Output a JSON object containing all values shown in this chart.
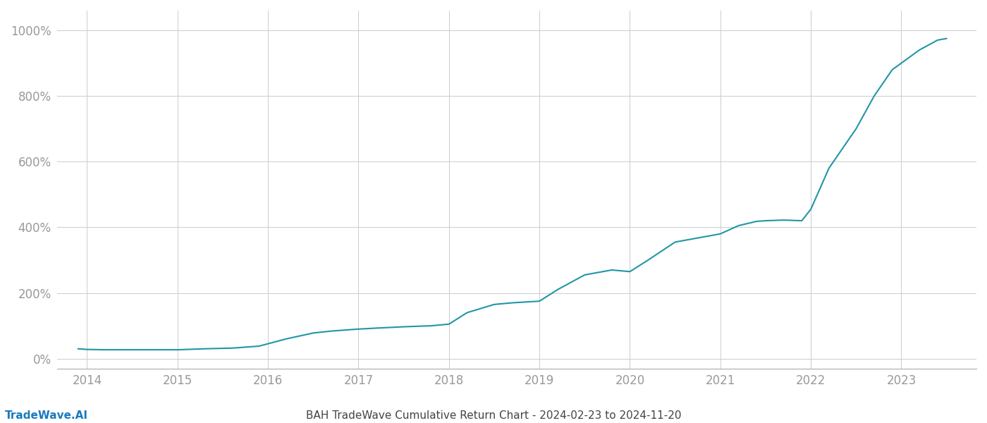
{
  "title": "BAH TradeWave Cumulative Return Chart - 2024-02-23 to 2024-11-20",
  "watermark": "TradeWave.AI",
  "line_color": "#2196a6",
  "background_color": "#ffffff",
  "grid_color": "#cccccc",
  "tick_color": "#999999",
  "line_width": 1.5,
  "xlim": [
    2013.67,
    2023.83
  ],
  "ylim": [
    -30,
    1060
  ],
  "yticks": [
    0,
    200,
    400,
    600,
    800,
    1000
  ],
  "xticks": [
    2014,
    2015,
    2016,
    2017,
    2018,
    2019,
    2020,
    2021,
    2022,
    2023
  ],
  "data_x": [
    2013.9,
    2014.0,
    2014.2,
    2014.5,
    2014.8,
    2015.0,
    2015.3,
    2015.6,
    2015.9,
    2016.2,
    2016.5,
    2016.7,
    2016.9,
    2017.0,
    2017.2,
    2017.5,
    2017.8,
    2018.0,
    2018.2,
    2018.5,
    2018.7,
    2019.0,
    2019.2,
    2019.5,
    2019.8,
    2020.0,
    2020.2,
    2020.5,
    2020.8,
    2021.0,
    2021.2,
    2021.4,
    2021.5,
    2021.7,
    2021.9,
    2022.0,
    2022.2,
    2022.5,
    2022.7,
    2022.9,
    2023.0,
    2023.2,
    2023.4,
    2023.5
  ],
  "data_y": [
    30,
    28,
    27,
    27,
    27,
    27,
    30,
    32,
    38,
    60,
    78,
    84,
    88,
    90,
    93,
    97,
    100,
    105,
    140,
    165,
    170,
    175,
    210,
    255,
    270,
    265,
    300,
    355,
    370,
    380,
    405,
    418,
    420,
    422,
    420,
    455,
    580,
    700,
    800,
    880,
    900,
    940,
    970,
    975
  ]
}
